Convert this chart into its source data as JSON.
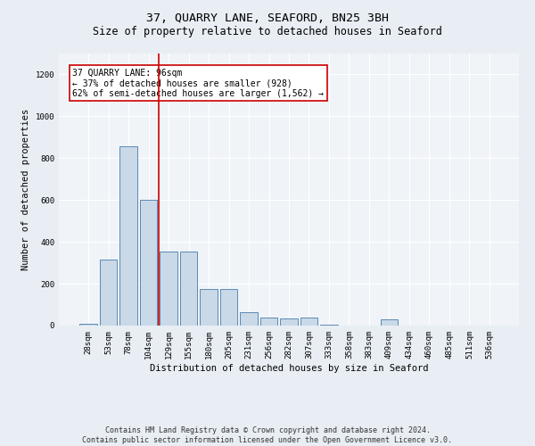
{
  "title": "37, QUARRY LANE, SEAFORD, BN25 3BH",
  "subtitle": "Size of property relative to detached houses in Seaford",
  "xlabel": "Distribution of detached houses by size in Seaford",
  "ylabel": "Number of detached properties",
  "categories": [
    "28sqm",
    "53sqm",
    "78sqm",
    "104sqm",
    "129sqm",
    "155sqm",
    "180sqm",
    "205sqm",
    "231sqm",
    "256sqm",
    "282sqm",
    "307sqm",
    "333sqm",
    "358sqm",
    "383sqm",
    "409sqm",
    "434sqm",
    "460sqm",
    "485sqm",
    "511sqm",
    "536sqm"
  ],
  "values": [
    10,
    315,
    855,
    600,
    355,
    355,
    175,
    175,
    65,
    40,
    35,
    40,
    5,
    0,
    0,
    30,
    0,
    0,
    0,
    0,
    0
  ],
  "bar_color": "#c9d9e8",
  "bar_edge_color": "#5a8ab5",
  "vline_x": 3.5,
  "vline_color": "#cc0000",
  "annotation_text": "37 QUARRY LANE: 96sqm\n← 37% of detached houses are smaller (928)\n62% of semi-detached houses are larger (1,562) →",
  "annotation_box_color": "#ffffff",
  "annotation_box_edge_color": "#cc0000",
  "ylim": [
    0,
    1300
  ],
  "yticks": [
    0,
    200,
    400,
    600,
    800,
    1000,
    1200
  ],
  "bg_color": "#e8eef4",
  "plot_bg_color": "#f0f4f8",
  "footer_line1": "Contains HM Land Registry data © Crown copyright and database right 2024.",
  "footer_line2": "Contains public sector information licensed under the Open Government Licence v3.0.",
  "title_fontsize": 9.5,
  "subtitle_fontsize": 8.5,
  "axis_label_fontsize": 7.5,
  "tick_fontsize": 6.5,
  "annotation_fontsize": 7,
  "footer_fontsize": 6
}
